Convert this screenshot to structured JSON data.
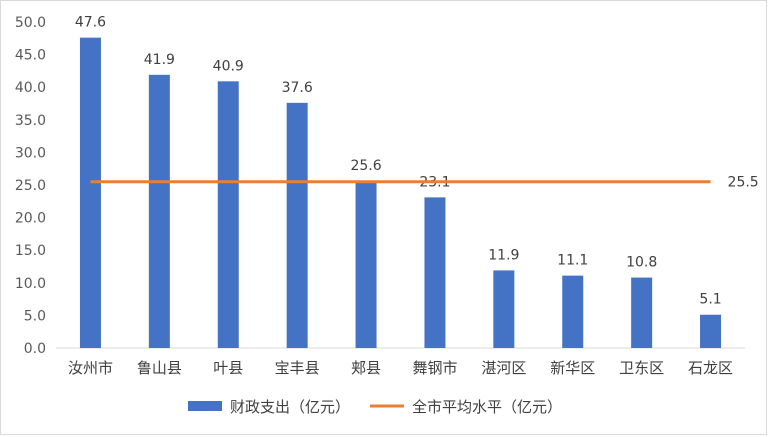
{
  "chart_data": {
    "type": "bar",
    "title": "",
    "xlabel": "",
    "ylabel": "",
    "ylim": [
      0,
      50
    ],
    "yticks": [
      "0.0",
      "5.0",
      "10.0",
      "15.0",
      "20.0",
      "25.0",
      "30.0",
      "35.0",
      "40.0",
      "45.0",
      "50.0"
    ],
    "categories": [
      "汝州市",
      "鲁山县",
      "叶县",
      "宝丰县",
      "郏县",
      "舞钢市",
      "湛河区",
      "新华区",
      "卫东区",
      "石龙区"
    ],
    "series": [
      {
        "name": "财政支出（亿元）",
        "type": "bar",
        "color": "#4472c4",
        "values": [
          47.6,
          41.9,
          40.9,
          37.6,
          25.6,
          23.1,
          11.9,
          11.1,
          10.8,
          5.1
        ],
        "labels": [
          "47.6",
          "41.9",
          "40.9",
          "37.6",
          "25.6",
          "23.1",
          "11.9",
          "11.1",
          "10.8",
          "5.1"
        ]
      },
      {
        "name": "全市平均水平（亿元）",
        "type": "line",
        "color": "#ed7d31",
        "value": 25.5,
        "label": "25.5"
      }
    ],
    "grid": false,
    "legend_position": "bottom"
  }
}
